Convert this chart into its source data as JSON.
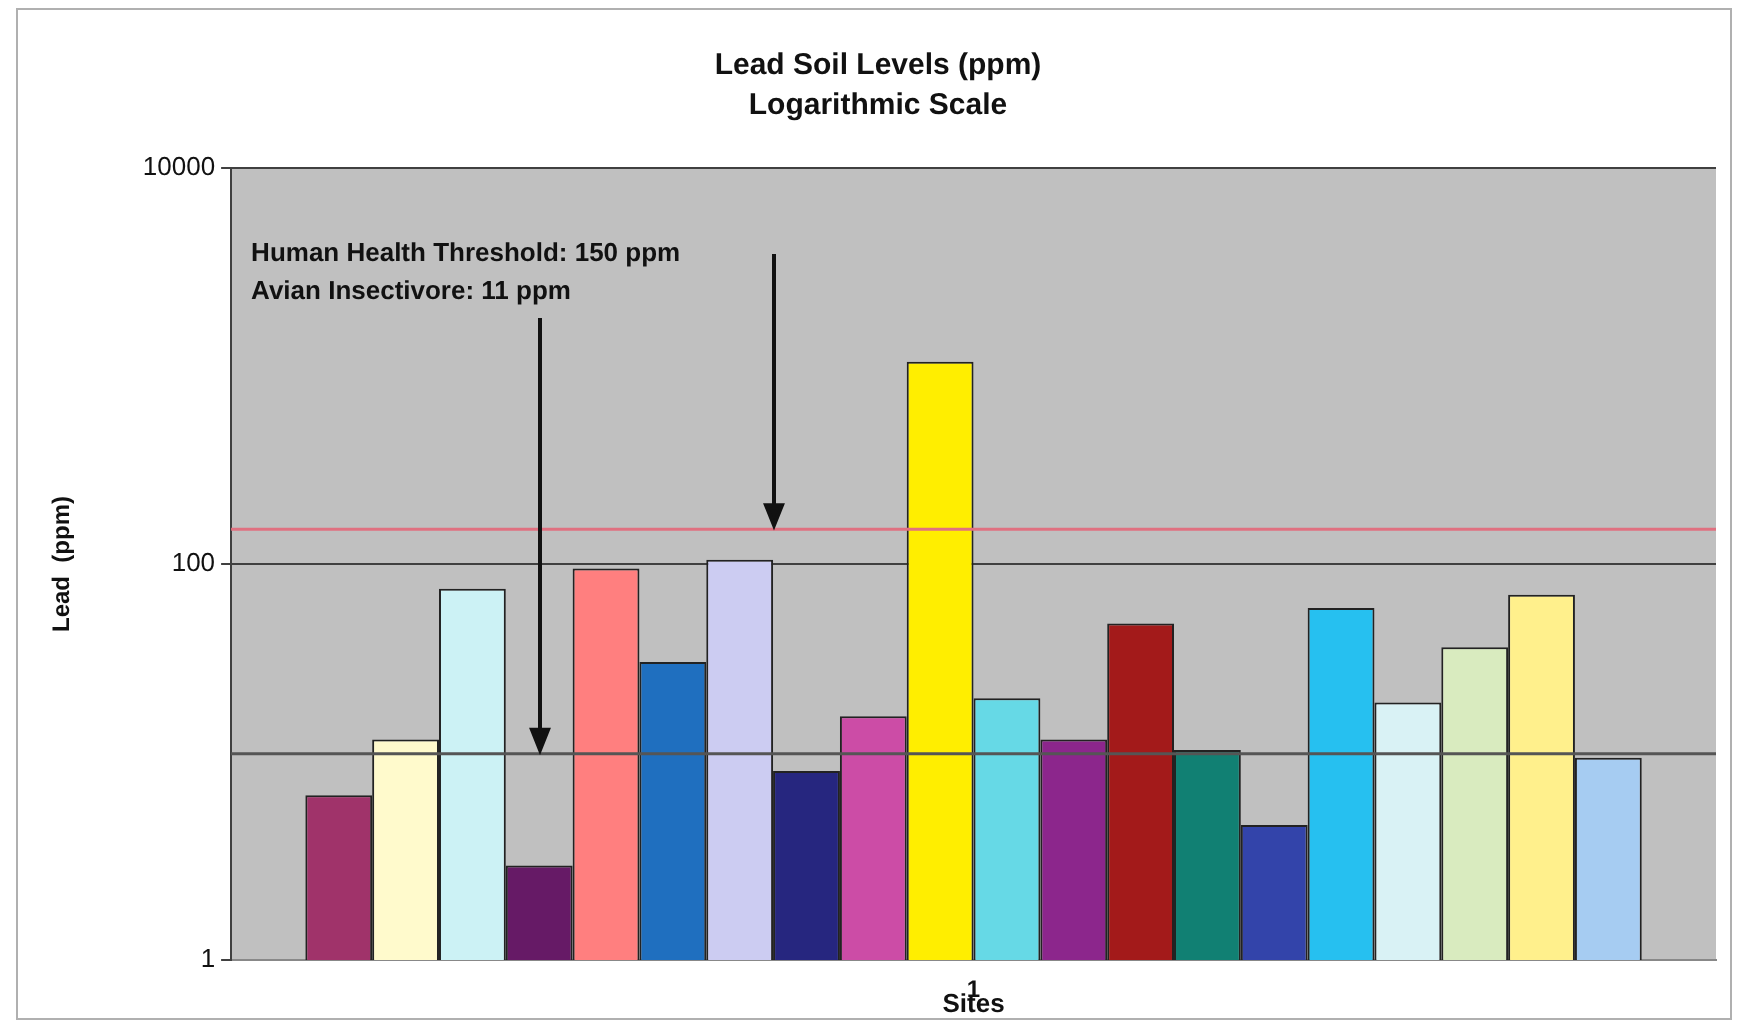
{
  "chart_data": {
    "type": "bar",
    "title": "Lead Soil Levels (ppm)",
    "subtitle": "Logarithmic Scale",
    "xlabel": "Sites",
    "ylabel": "Lead  (ppm)",
    "categories": [
      "1"
    ],
    "series": [
      {
        "color": "#a0336a",
        "values": [
          6.8
        ]
      },
      {
        "color": "#fffacc",
        "values": [
          13
        ]
      },
      {
        "color": "#ccf2f5",
        "values": [
          75
        ]
      },
      {
        "color": "#661a66",
        "values": [
          3
        ]
      },
      {
        "color": "#ff7f7f",
        "values": [
          95
        ]
      },
      {
        "color": "#1f6fbf",
        "values": [
          32
        ]
      },
      {
        "color": "#ccccf2",
        "values": [
          105
        ]
      },
      {
        "color": "#26267f",
        "values": [
          9
        ]
      },
      {
        "color": "#cc4ca6",
        "values": [
          17
        ]
      },
      {
        "color": "#ffee00",
        "values": [
          1050
        ]
      },
      {
        "color": "#66d9e6",
        "values": [
          21
        ]
      },
      {
        "color": "#8c268c",
        "values": [
          13
        ]
      },
      {
        "color": "#a31a1a",
        "values": [
          50
        ]
      },
      {
        "color": "#118073",
        "values": [
          11.5
        ]
      },
      {
        "color": "#3344aa",
        "values": [
          4.8
        ]
      },
      {
        "color": "#26c0f0",
        "values": [
          60
        ]
      },
      {
        "color": "#d9f2f5",
        "values": [
          20
        ]
      },
      {
        "color": "#d9ebbf",
        "values": [
          38
        ]
      },
      {
        "color": "#fff08c",
        "values": [
          70
        ]
      },
      {
        "color": "#a6ccf2",
        "values": [
          10.5
        ]
      }
    ],
    "log": "y",
    "ylim": [
      1,
      10000
    ],
    "yticks": [
      1,
      100,
      10000
    ],
    "grid": "y",
    "legend": false,
    "ref_lines": [
      {
        "axis": "y",
        "value": 150,
        "color": "#e07080"
      },
      {
        "axis": "y",
        "value": 11,
        "color": "#555555"
      }
    ],
    "annotations": [
      "Human Health Threshold: 150 ppm",
      "Avian Insectivore: 11 ppm"
    ]
  }
}
